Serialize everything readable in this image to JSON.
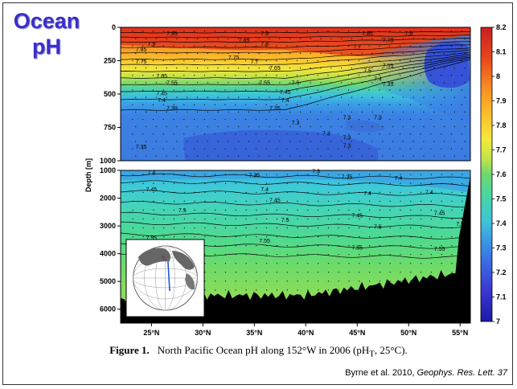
{
  "slide": {
    "title_line1": "Ocean",
    "title_line2": "pH",
    "figure_number": "Figure 1.",
    "caption": "North Pacific Ocean pH along 152°W in 2006 (pH",
    "caption_sub": "T",
    "caption_end": ", 25°C).",
    "credit_prefix": "Byrne et al. 2010, ",
    "credit_journal": "Geophys. Res. Lett. 37"
  },
  "chart_data": {
    "type": "heatmap",
    "ylabel": "Depth [m]",
    "x_ticks": [
      "25°N",
      "30°N",
      "35°N",
      "40°N",
      "45°N",
      "50°N",
      "55°N"
    ],
    "x_tick_values": [
      25,
      30,
      35,
      40,
      45,
      50,
      55
    ],
    "xlim": [
      22,
      56
    ],
    "upper_panel": {
      "ylim": [
        0,
        1000
      ],
      "y_ticks": [
        "0",
        "250",
        "500",
        "750",
        "1000"
      ],
      "y_tick_values": [
        0,
        250,
        500,
        750,
        1000
      ]
    },
    "lower_panel": {
      "ylim": [
        1000,
        6500
      ],
      "y_ticks": [
        "1000",
        "2000",
        "3000",
        "4000",
        "5000",
        "6000"
      ],
      "y_tick_values": [
        1000,
        2000,
        3000,
        4000,
        5000,
        6000
      ]
    },
    "colorbar": {
      "min": 7.0,
      "max": 8.2,
      "ticks": [
        "8.2",
        "8.1",
        "8",
        "7.9",
        "7.8",
        "7.7",
        "7.6",
        "7.5",
        "7.4",
        "7.3",
        "7.2",
        "7.1",
        "7"
      ],
      "tick_values": [
        8.2,
        8.1,
        8.0,
        7.9,
        7.8,
        7.7,
        7.6,
        7.5,
        7.4,
        7.3,
        7.2,
        7.1,
        7.0
      ]
    },
    "contour_labels": [
      {
        "text": "7.95",
        "lat": 27,
        "depth": 60
      },
      {
        "text": "7.9",
        "lat": 36,
        "depth": 60
      },
      {
        "text": "7.85",
        "lat": 46,
        "depth": 60
      },
      {
        "text": "7.8",
        "lat": 50,
        "depth": 60
      },
      {
        "text": "7.85",
        "lat": 34,
        "depth": 110
      },
      {
        "text": "7.9",
        "lat": 25,
        "depth": 140
      },
      {
        "text": "7.75",
        "lat": 48,
        "depth": 110
      },
      {
        "text": "7.8",
        "lat": 36,
        "depth": 140
      },
      {
        "text": "7.85",
        "lat": 24,
        "depth": 180
      },
      {
        "text": "7.7",
        "lat": 45,
        "depth": 160
      },
      {
        "text": "7.75",
        "lat": 33,
        "depth": 240
      },
      {
        "text": "7.75",
        "lat": 24,
        "depth": 270
      },
      {
        "text": "7.7",
        "lat": 35,
        "depth": 275
      },
      {
        "text": "7.65",
        "lat": 37,
        "depth": 320
      },
      {
        "text": "7.55",
        "lat": 48,
        "depth": 300
      },
      {
        "text": "7.65",
        "lat": 26,
        "depth": 380
      },
      {
        "text": "7.5",
        "lat": 46,
        "depth": 340
      },
      {
        "text": "7.55",
        "lat": 27,
        "depth": 430
      },
      {
        "text": "7.55",
        "lat": 36,
        "depth": 430
      },
      {
        "text": "7.5",
        "lat": 39,
        "depth": 430
      },
      {
        "text": "7.4",
        "lat": 47,
        "depth": 400
      },
      {
        "text": "7.35",
        "lat": 48,
        "depth": 440
      },
      {
        "text": "7.45",
        "lat": 26,
        "depth": 510
      },
      {
        "text": "7.45",
        "lat": 38,
        "depth": 500
      },
      {
        "text": "7.4",
        "lat": 26,
        "depth": 560
      },
      {
        "text": "7.4",
        "lat": 38,
        "depth": 560
      },
      {
        "text": "7.39",
        "lat": 27,
        "depth": 620
      },
      {
        "text": "7.35",
        "lat": 37,
        "depth": 620
      },
      {
        "text": "7.3",
        "lat": 44,
        "depth": 690
      },
      {
        "text": "7.3",
        "lat": 47,
        "depth": 690
      },
      {
        "text": "7.3",
        "lat": 39,
        "depth": 730
      },
      {
        "text": "7.3",
        "lat": 42,
        "depth": 810
      },
      {
        "text": "7.3",
        "lat": 44,
        "depth": 840
      },
      {
        "text": "7.35",
        "lat": 24,
        "depth": 910
      },
      {
        "text": "7.3",
        "lat": 44,
        "depth": 900
      },
      {
        "text": "7.4",
        "lat": 25,
        "depth": 1150
      },
      {
        "text": "7.35",
        "lat": 35,
        "depth": 1250
      },
      {
        "text": "7.3",
        "lat": 41,
        "depth": 1100
      },
      {
        "text": "7.35",
        "lat": 44,
        "depth": 1300
      },
      {
        "text": "7.4",
        "lat": 49,
        "depth": 1350
      },
      {
        "text": "7.45",
        "lat": 25,
        "depth": 1750
      },
      {
        "text": "7.4",
        "lat": 36,
        "depth": 1750
      },
      {
        "text": "7.4",
        "lat": 46,
        "depth": 1900
      },
      {
        "text": "7.4",
        "lat": 52,
        "depth": 1850
      },
      {
        "text": "7.45",
        "lat": 37,
        "depth": 2150
      },
      {
        "text": "7.5",
        "lat": 28,
        "depth": 2500
      },
      {
        "text": "7.45",
        "lat": 45,
        "depth": 2700
      },
      {
        "text": "7.45",
        "lat": 53,
        "depth": 2600
      },
      {
        "text": "7.5",
        "lat": 38,
        "depth": 2850
      },
      {
        "text": "7.5",
        "lat": 47,
        "depth": 3100
      },
      {
        "text": "7.5",
        "lat": 55,
        "depth": 3000
      },
      {
        "text": "7.55",
        "lat": 25,
        "depth": 3500
      },
      {
        "text": "7.55",
        "lat": 36,
        "depth": 3600
      },
      {
        "text": "7.55",
        "lat": 45,
        "depth": 3850
      },
      {
        "text": "7.55",
        "lat": 53,
        "depth": 3900
      }
    ]
  }
}
